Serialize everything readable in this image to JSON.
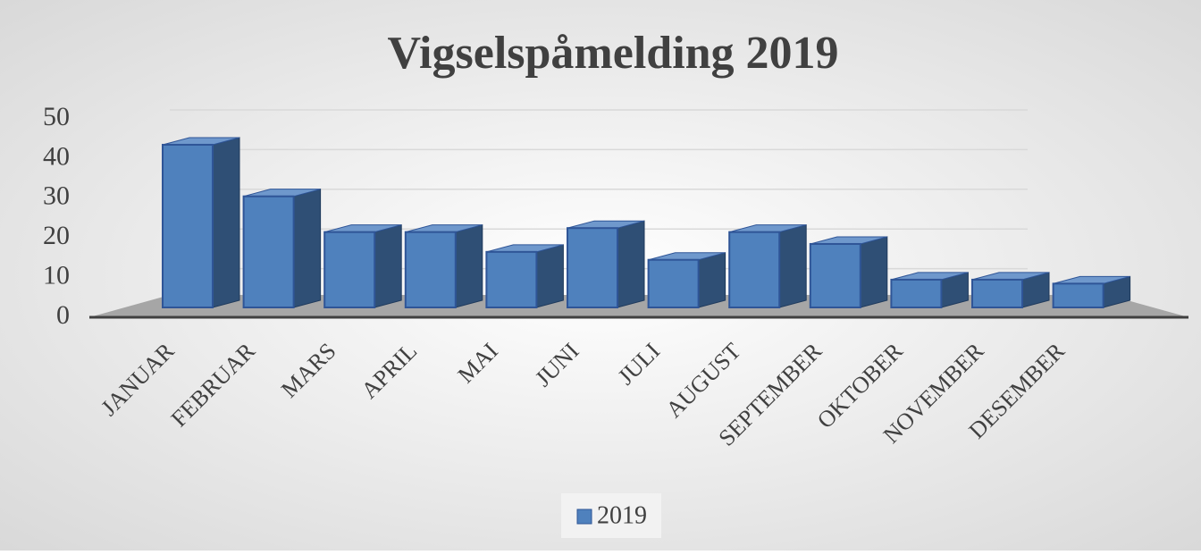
{
  "chart_data": {
    "type": "bar",
    "title": "Vigselspåmelding 2019",
    "categories": [
      "JANUAR",
      "FEBRUAR",
      "MARS",
      "APRIL",
      "MAI",
      "JUNI",
      "JULI",
      "AUGUST",
      "SEPTEMBER",
      "OKTOBER",
      "NOVEMBER",
      "DESEMBER"
    ],
    "series": [
      {
        "name": "2019",
        "color": "#4f81bd",
        "values": [
          41,
          28,
          19,
          19,
          14,
          20,
          12,
          19,
          16,
          7,
          7,
          6
        ]
      }
    ],
    "ylim": [
      0,
      50
    ],
    "yticks": [
      0,
      10,
      20,
      30,
      40,
      50
    ],
    "grid": true,
    "legend": "bottom"
  }
}
